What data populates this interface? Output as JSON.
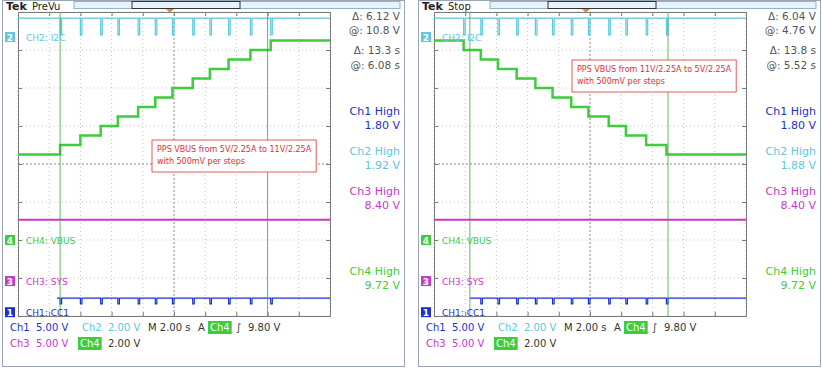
{
  "chart_data": [
    {
      "type": "line",
      "header": [
        "Tek",
        "PreVu"
      ],
      "x": [
        0,
        2.5,
        2.7,
        2.8,
        4.0,
        4.1,
        5.3,
        5.4,
        6.4,
        6.5,
        7.7,
        7.8,
        8.8,
        8.9,
        9.9,
        10.0,
        11.2,
        11.3,
        12.3,
        12.4,
        13.5,
        13.6,
        14.9,
        15.0,
        16.2,
        16.3,
        20
      ],
      "xlim": [
        0,
        20
      ],
      "xticks": [
        0,
        2,
        4,
        6,
        8,
        10,
        12,
        14,
        16,
        18,
        20
      ],
      "ylim": [
        -4,
        4
      ],
      "yticks": [
        -4,
        -3,
        -2,
        -1,
        0,
        1,
        2,
        3,
        4
      ],
      "grid": true,
      "tick_labels": false,
      "series": [
        {
          "name": "CH1: CC1",
          "channel": "1",
          "color": "#1c2fd0",
          "ground": -3.9,
          "values": [
            null,
            -3.53,
            -3.68,
            -3.53,
            -3.68,
            -3.53,
            -3.68,
            -3.53,
            -3.68,
            -3.53,
            -3.68,
            -3.53,
            -3.68,
            -3.53,
            -3.68,
            -3.53,
            -3.68,
            -3.53,
            -3.68,
            -3.53,
            -3.68,
            -3.53,
            -3.68,
            -3.53,
            -3.68,
            -3.53,
            -3.53
          ]
        },
        {
          "name": "CH2: I2C",
          "channel": "2",
          "color": "#5cc8dc",
          "ground": 3.34,
          "values": [
            3.84,
            3.84,
            3.4,
            3.84,
            3.4,
            3.84,
            3.4,
            3.84,
            3.4,
            3.84,
            3.4,
            3.84,
            3.4,
            3.84,
            3.4,
            3.84,
            3.4,
            3.84,
            3.4,
            3.84,
            3.4,
            3.84,
            3.4,
            3.84,
            3.4,
            3.84,
            3.84
          ]
        },
        {
          "name": "CH3: SYS",
          "channel": "3",
          "color": "#c53ac5",
          "ground": -3.08,
          "values": [
            -1.47,
            -1.47,
            -1.47,
            -1.47,
            -1.47,
            -1.47,
            -1.47,
            -1.47,
            -1.47,
            -1.47,
            -1.47,
            -1.47,
            -1.47,
            -1.47,
            -1.47,
            -1.47,
            -1.47,
            -1.47,
            -1.47,
            -1.47,
            -1.47,
            -1.47,
            -1.47,
            -1.47,
            -1.47,
            -1.47,
            -1.47
          ]
        },
        {
          "name": "CH4: VBUS",
          "channel": "4",
          "color": "#3ccc3c",
          "ground": -2.0,
          "values": [
            0.25,
            0.25,
            0.5,
            0.5,
            0.75,
            0.75,
            1.0,
            1.0,
            1.25,
            1.25,
            1.5,
            1.5,
            1.75,
            1.75,
            2.0,
            2.0,
            2.25,
            2.25,
            2.5,
            2.5,
            2.75,
            2.75,
            3.0,
            3.0,
            3.25,
            3.25,
            3.25
          ]
        }
      ],
      "cursor_x": [
        2.7,
        16.0
      ],
      "annotation": [
        "PPS VBUS from 5V/2.25A to 11V/2.25A",
        "with 500mV per steps"
      ],
      "readouts": [
        "Δ: 6.12 V",
        "@: 10.8 V",
        "Δ: 13.3 s",
        "@: 6.08 s"
      ],
      "channel_highs": [
        {
          "label": "Ch1 High",
          "value": "1.80 V"
        },
        {
          "label": "Ch2 High",
          "value": "1.92 V"
        },
        {
          "label": "Ch3 High",
          "value": "8.40 V"
        },
        {
          "label": "Ch4 High",
          "value": "9.72 V"
        }
      ],
      "status": [
        [
          "Ch1",
          "5.00 V",
          "Ch2",
          "2.00 V",
          "M 2.00 s",
          "A",
          "Ch4",
          "∫",
          "9.80 V"
        ],
        [
          "Ch3",
          "5.00 V",
          "Ch4",
          "2.00 V"
        ]
      ]
    },
    {
      "type": "line",
      "header": [
        "Tek",
        "Stop"
      ],
      "x": [
        0,
        1.9,
        2.0,
        2.3,
        3.0,
        3.1,
        4.1,
        4.2,
        5.3,
        5.4,
        6.5,
        6.6,
        7.6,
        7.7,
        8.8,
        8.9,
        9.9,
        10.0,
        11.2,
        11.3,
        12.3,
        12.4,
        13.6,
        13.7,
        14.9,
        15.0,
        20
      ],
      "xlim": [
        0,
        20
      ],
      "xticks": [
        0,
        2,
        4,
        6,
        8,
        10,
        12,
        14,
        16,
        18,
        20
      ],
      "ylim": [
        -4,
        4
      ],
      "yticks": [
        -4,
        -3,
        -2,
        -1,
        0,
        1,
        2,
        3,
        4
      ],
      "grid": true,
      "tick_labels": false,
      "series": [
        {
          "name": "CH1: CC1",
          "channel": "1",
          "color": "#1c2fd0",
          "ground": -3.9,
          "values": [
            null,
            null,
            null,
            -3.53,
            -3.68,
            -3.53,
            -3.68,
            -3.53,
            -3.68,
            -3.53,
            -3.68,
            -3.53,
            -3.68,
            -3.53,
            -3.68,
            -3.53,
            -3.68,
            -3.53,
            -3.68,
            -3.53,
            -3.68,
            -3.53,
            -3.68,
            -3.53,
            -3.68,
            -3.53,
            -3.53
          ]
        },
        {
          "name": "CH2: I2C",
          "channel": "2",
          "color": "#5cc8dc",
          "ground": 3.34,
          "values": [
            3.84,
            3.4,
            3.84,
            3.84,
            3.4,
            3.84,
            3.4,
            3.84,
            3.4,
            3.84,
            3.4,
            3.84,
            3.4,
            3.84,
            3.4,
            3.84,
            3.4,
            3.84,
            3.4,
            3.84,
            3.4,
            3.84,
            3.4,
            3.84,
            3.4,
            3.84,
            3.84
          ]
        },
        {
          "name": "CH3: SYS",
          "channel": "3",
          "color": "#c53ac5",
          "ground": -3.08,
          "values": [
            -1.47,
            -1.47,
            -1.47,
            -1.47,
            -1.47,
            -1.47,
            -1.47,
            -1.47,
            -1.47,
            -1.47,
            -1.47,
            -1.47,
            -1.47,
            -1.47,
            -1.47,
            -1.47,
            -1.47,
            -1.47,
            -1.47,
            -1.47,
            -1.47,
            -1.47,
            -1.47,
            -1.47,
            -1.47,
            -1.47,
            -1.47
          ]
        },
        {
          "name": "CH4: VBUS",
          "channel": "4",
          "color": "#3ccc3c",
          "ground": -2.0,
          "values": [
            3.25,
            3.0,
            3.0,
            3.0,
            2.75,
            2.75,
            2.5,
            2.5,
            2.25,
            2.25,
            2.0,
            2.0,
            1.75,
            1.75,
            1.5,
            1.5,
            1.25,
            1.25,
            1.0,
            1.0,
            0.75,
            0.75,
            0.5,
            0.5,
            0.25,
            0.25,
            0.25
          ]
        }
      ],
      "cursor_x": [
        2.3,
        15.0
      ],
      "annotation": [
        "PPS VBUS from 11V/2.25A to 5V/2.25A",
        "with 500mV per steps"
      ],
      "readouts": [
        "Δ: 6.04 V",
        "@: 4.76 V",
        "Δ: 13.8 s",
        "@: 5.52 s"
      ],
      "channel_highs": [
        {
          "label": "Ch1 High",
          "value": "1.80 V"
        },
        {
          "label": "Ch2 High",
          "value": "1.88 V"
        },
        {
          "label": "Ch3 High",
          "value": "8.40 V"
        },
        {
          "label": "Ch4 High",
          "value": "9.72 V"
        }
      ],
      "status": [
        [
          "Ch1",
          "5.00 V",
          "Ch2",
          "2.00 V",
          "M 2.00 s",
          "A",
          "Ch4",
          "∫",
          "9.80 V"
        ],
        [
          "Ch3",
          "5.00 V",
          "Ch4",
          "2.00 V"
        ]
      ]
    }
  ]
}
